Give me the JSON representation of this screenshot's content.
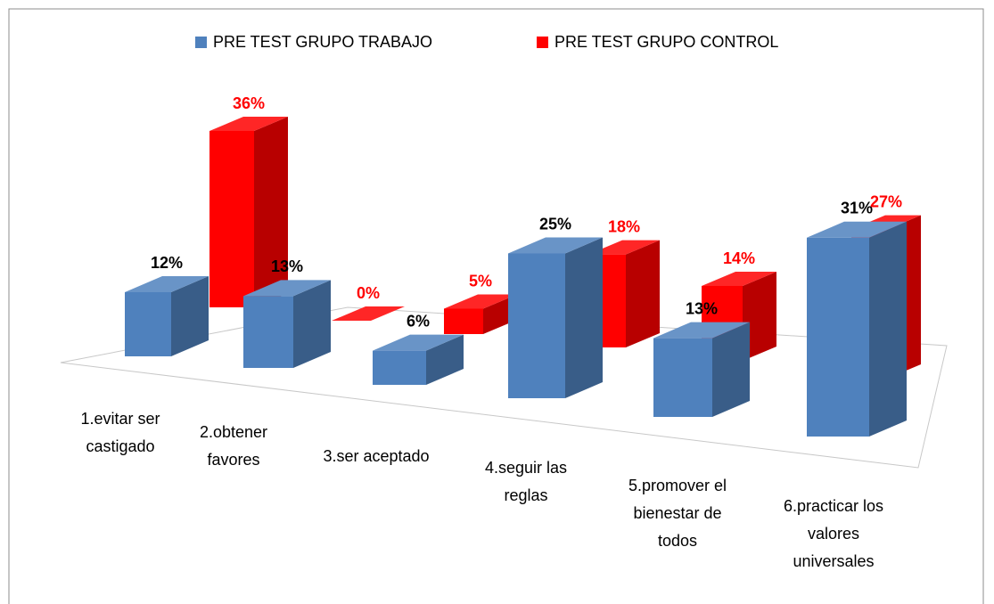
{
  "chart_data": {
    "type": "bar3d",
    "categories": [
      "1.evitar ser castigado",
      "2.obtener favores",
      "3.ser aceptado",
      "4.seguir las reglas",
      "5.promover el bienestar de todos",
      "6.practicar los valores universales"
    ],
    "series": [
      {
        "name": "PRE TEST GRUPO TRABAJO",
        "color": "#4f81bd",
        "values": [
          12,
          13,
          6,
          25,
          13,
          31
        ],
        "value_labels": [
          "12%",
          "13%",
          "6%",
          "25%",
          "13%",
          "31%"
        ]
      },
      {
        "name": "PRE TEST GRUPO CONTROL",
        "color": "#ff0000",
        "values": [
          36,
          0,
          5,
          18,
          14,
          27
        ],
        "value_labels": [
          "36%",
          "0%",
          "5%",
          "18%",
          "14%",
          "27%"
        ]
      }
    ],
    "legend": "top"
  }
}
